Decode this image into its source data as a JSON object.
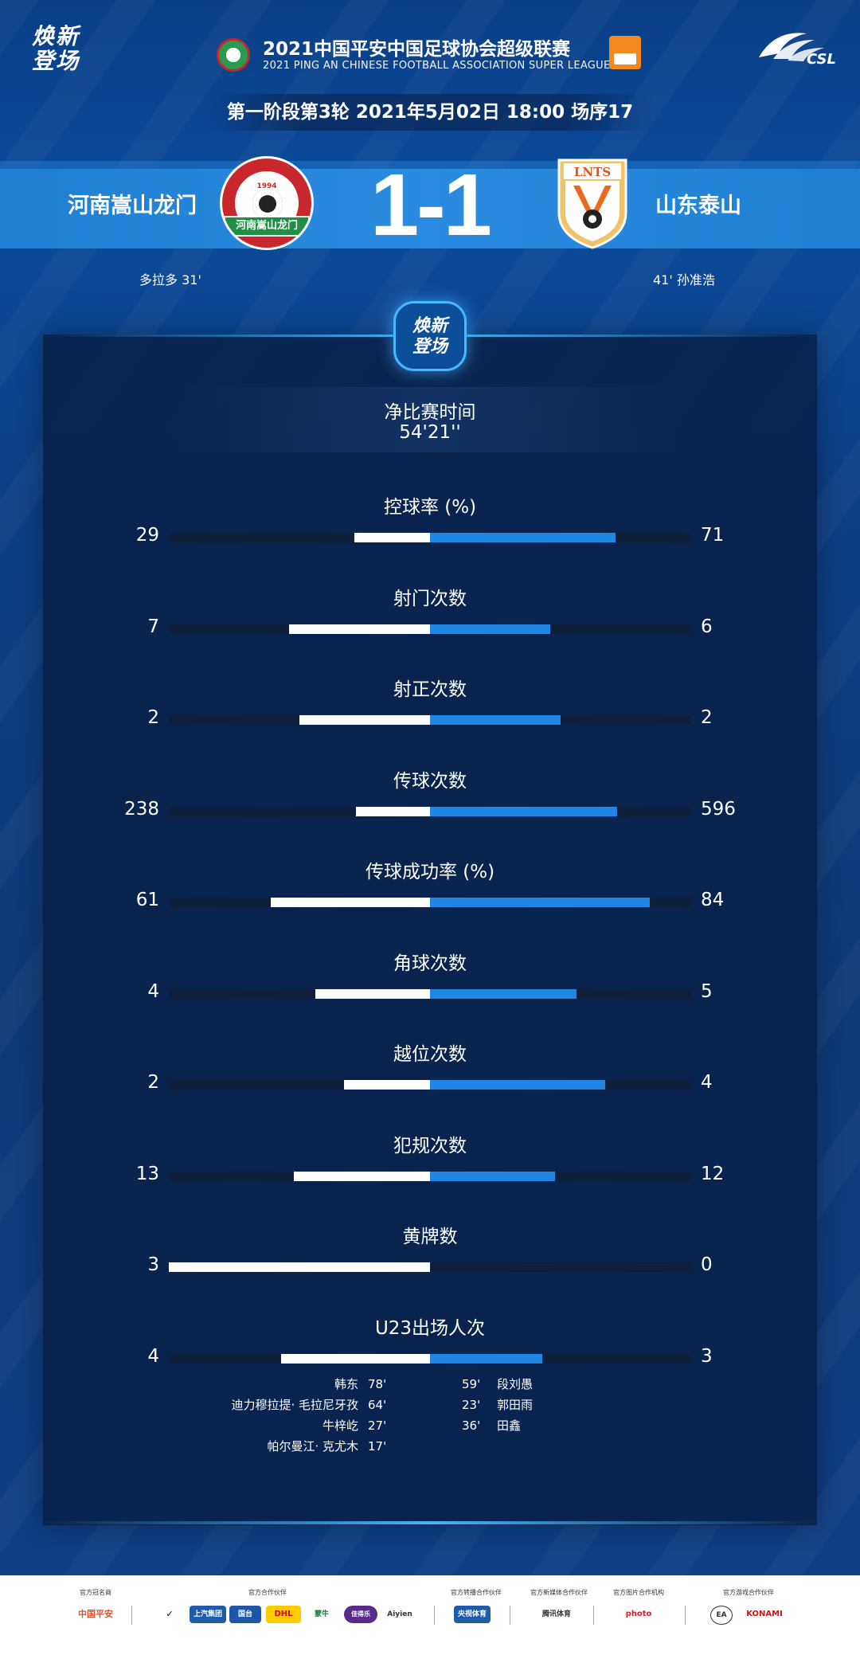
{
  "header": {
    "brand_line1": "焕新",
    "brand_line2": "登场",
    "league_title": "2021中国平安中国足球协会超级联赛",
    "league_subtitle": "2021 PING AN CHINESE FOOTBALL ASSOCIATION SUPER LEAGUE",
    "csl_text": "CSL"
  },
  "match_info": "第一阶段第3轮  2021年5月02日 18:00 场序17",
  "home": {
    "name": "河南嵩山龙门",
    "logo_text": "河南嵩山龙门",
    "logo_year": "1994",
    "score": "1",
    "scorer": "多拉多  31'"
  },
  "away": {
    "name": "山东泰山",
    "logo_text": "LNTS",
    "score": "1",
    "scorer": "41'  孙准浩"
  },
  "score_text": "1-1",
  "emblem": {
    "line1": "焕新",
    "line2": "登场"
  },
  "net_time": {
    "label": "净比赛时间",
    "value": "54'21''"
  },
  "stats": [
    {
      "label": "控球率 (%)",
      "home": "29",
      "away": "71",
      "home_frac": 0.29,
      "away_frac": 0.71
    },
    {
      "label": "射门次数",
      "home": "7",
      "away": "6",
      "home_frac": 0.54,
      "away_frac": 0.46
    },
    {
      "label": "射正次数",
      "home": "2",
      "away": "2",
      "home_frac": 0.5,
      "away_frac": 0.5
    },
    {
      "label": "传球次数",
      "home": "238",
      "away": "596",
      "home_frac": 0.285,
      "away_frac": 0.715
    },
    {
      "label": "传球成功率 (%)",
      "home": "61",
      "away": "84",
      "home_frac": 0.61,
      "away_frac": 0.84
    },
    {
      "label": "角球次数",
      "home": "4",
      "away": "5",
      "home_frac": 0.44,
      "away_frac": 0.56
    },
    {
      "label": "越位次数",
      "home": "2",
      "away": "4",
      "home_frac": 0.33,
      "away_frac": 0.67
    },
    {
      "label": "犯规次数",
      "home": "13",
      "away": "12",
      "home_frac": 0.52,
      "away_frac": 0.48
    },
    {
      "label": "黄牌数",
      "home": "3",
      "away": "0",
      "home_frac": 1.0,
      "away_frac": 0.0
    },
    {
      "label": "U23出场人次",
      "home": "4",
      "away": "3",
      "home_frac": 0.57,
      "away_frac": 0.43
    }
  ],
  "u23_home": [
    {
      "name": "韩东",
      "minute": "78'"
    },
    {
      "name": "迪力穆拉提· 毛拉尼牙孜",
      "minute": "64'"
    },
    {
      "name": "牛梓屹",
      "minute": "27'"
    },
    {
      "name": "帕尔曼江· 克尤木",
      "minute": "17'"
    }
  ],
  "u23_away": [
    {
      "minute": "59'",
      "name": "段刘愚"
    },
    {
      "minute": "23'",
      "name": "郭田雨"
    },
    {
      "minute": "36'",
      "name": "田鑫"
    }
  ],
  "footer": {
    "label_title": "官方冠名商",
    "label_partner": "官方合作伙伴",
    "label_broadcast": "官方转播合作伙伴",
    "label_media": "官方新媒体合作伙伴",
    "label_photo": "官方图片合作机构",
    "label_game": "官方游戏合作伙伴",
    "title_sponsor": "中国平安",
    "partners": [
      "上汽集团",
      "国台",
      "DHL",
      "蒙牛",
      "佳得乐",
      "Aiyien"
    ],
    "broadcast": "央视体育",
    "media": "腾讯体育",
    "photo": "photo",
    "game": [
      "EA",
      "KONAMI"
    ]
  },
  "colors": {
    "home_bar": "#ffffff",
    "away_bar": "#1f86e4",
    "track": "#101f39"
  }
}
